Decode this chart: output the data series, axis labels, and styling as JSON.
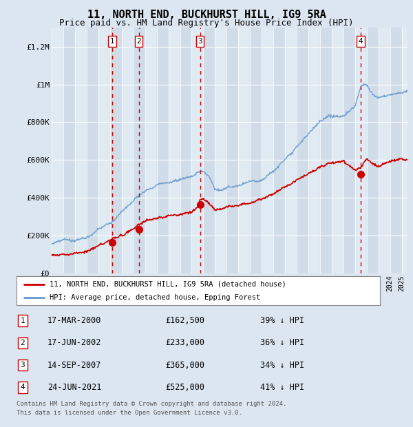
{
  "title": "11, NORTH END, BUCKHURST HILL, IG9 5RA",
  "subtitle": "Price paid vs. HM Land Registry's House Price Index (HPI)",
  "red_label": "11, NORTH END, BUCKHURST HILL, IG9 5RA (detached house)",
  "blue_label": "HPI: Average price, detached house, Epping Forest",
  "footer1": "Contains HM Land Registry data © Crown copyright and database right 2024.",
  "footer2": "This data is licensed under the Open Government Licence v3.0.",
  "transactions": [
    {
      "num": 1,
      "date": "17-MAR-2000",
      "price": "£162,500",
      "pct": "39% ↓ HPI"
    },
    {
      "num": 2,
      "date": "17-JUN-2002",
      "price": "£233,000",
      "pct": "36% ↓ HPI"
    },
    {
      "num": 3,
      "date": "14-SEP-2007",
      "price": "£365,000",
      "pct": "34% ↓ HPI"
    },
    {
      "num": 4,
      "date": "24-JUN-2021",
      "price": "£525,000",
      "pct": "41% ↓ HPI"
    }
  ],
  "transaction_years": [
    2000.21,
    2002.46,
    2007.71,
    2021.48
  ],
  "transaction_prices": [
    162500,
    233000,
    365000,
    525000
  ],
  "ylim": [
    0,
    1300000
  ],
  "xlim_start": 1995,
  "xlim_end": 2025.5,
  "bg_color": "#dce6f0",
  "plot_bg": "#e8eef5",
  "stripe_color": "#c8d8e8",
  "grid_color": "#ffffff",
  "red_line_color": "#cc0000",
  "blue_line_color": "#6699cc",
  "vline_color": "#cc0000",
  "title_fontsize": 11,
  "subtitle_fontsize": 9
}
